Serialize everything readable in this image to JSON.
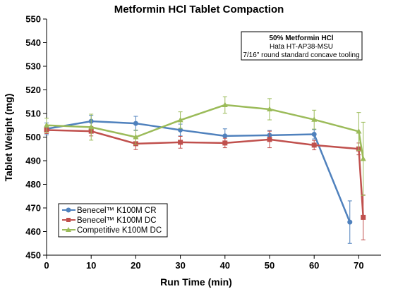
{
  "chart_data": {
    "type": "line",
    "title": "Metformin HCl Tablet Compaction",
    "xlabel": "Run Time (min)",
    "ylabel": "Tablet Weight (mg)",
    "xlim": [
      0,
      75
    ],
    "ylim": [
      450,
      550
    ],
    "xticks": [
      "0",
      "10",
      "20",
      "30",
      "40",
      "50",
      "60",
      "70"
    ],
    "yticks": [
      "450",
      "460",
      "470",
      "480",
      "490",
      "500",
      "510",
      "520",
      "530",
      "540",
      "550"
    ],
    "grid": false,
    "legend_position": "bottom-left",
    "annotation": {
      "line1": "50% Metformin HCl",
      "line2": "Hata HT-AP38-MSU",
      "line3": "7/16\" round standard concave tooling"
    },
    "series": [
      {
        "name": "Benecel™ K100M CR",
        "color": "#4f81bd",
        "marker": "circle",
        "x": [
          0,
          10,
          20,
          30,
          40,
          50,
          60,
          68
        ],
        "values": [
          503.5,
          506.7,
          505.8,
          503.0,
          500.5,
          500.8,
          501.2,
          464.0
        ],
        "error": [
          2.5,
          2.5,
          3.0,
          2.5,
          3.0,
          2.0,
          2.0,
          9.0
        ]
      },
      {
        "name": "Benecel™ K100M DC",
        "color": "#c0504d",
        "marker": "square",
        "x": [
          0,
          10,
          20,
          30,
          40,
          50,
          60,
          70,
          71
        ],
        "values": [
          503.0,
          502.5,
          497.2,
          497.8,
          497.5,
          499.0,
          496.6,
          495.0,
          466.0
        ],
        "error": [
          1.5,
          2.0,
          2.5,
          2.5,
          2.0,
          3.5,
          2.0,
          2.5,
          9.5
        ]
      },
      {
        "name": "Competitive K100M DC",
        "color": "#9bbb59",
        "marker": "triangle",
        "x": [
          0,
          10,
          20,
          30,
          40,
          50,
          60,
          70,
          71
        ],
        "values": [
          505.0,
          504.2,
          500.0,
          507.2,
          513.6,
          511.8,
          507.4,
          502.4,
          490.8
        ],
        "error": [
          3.0,
          5.5,
          3.0,
          3.5,
          3.5,
          4.5,
          4.0,
          8.0,
          15.5
        ]
      }
    ]
  }
}
